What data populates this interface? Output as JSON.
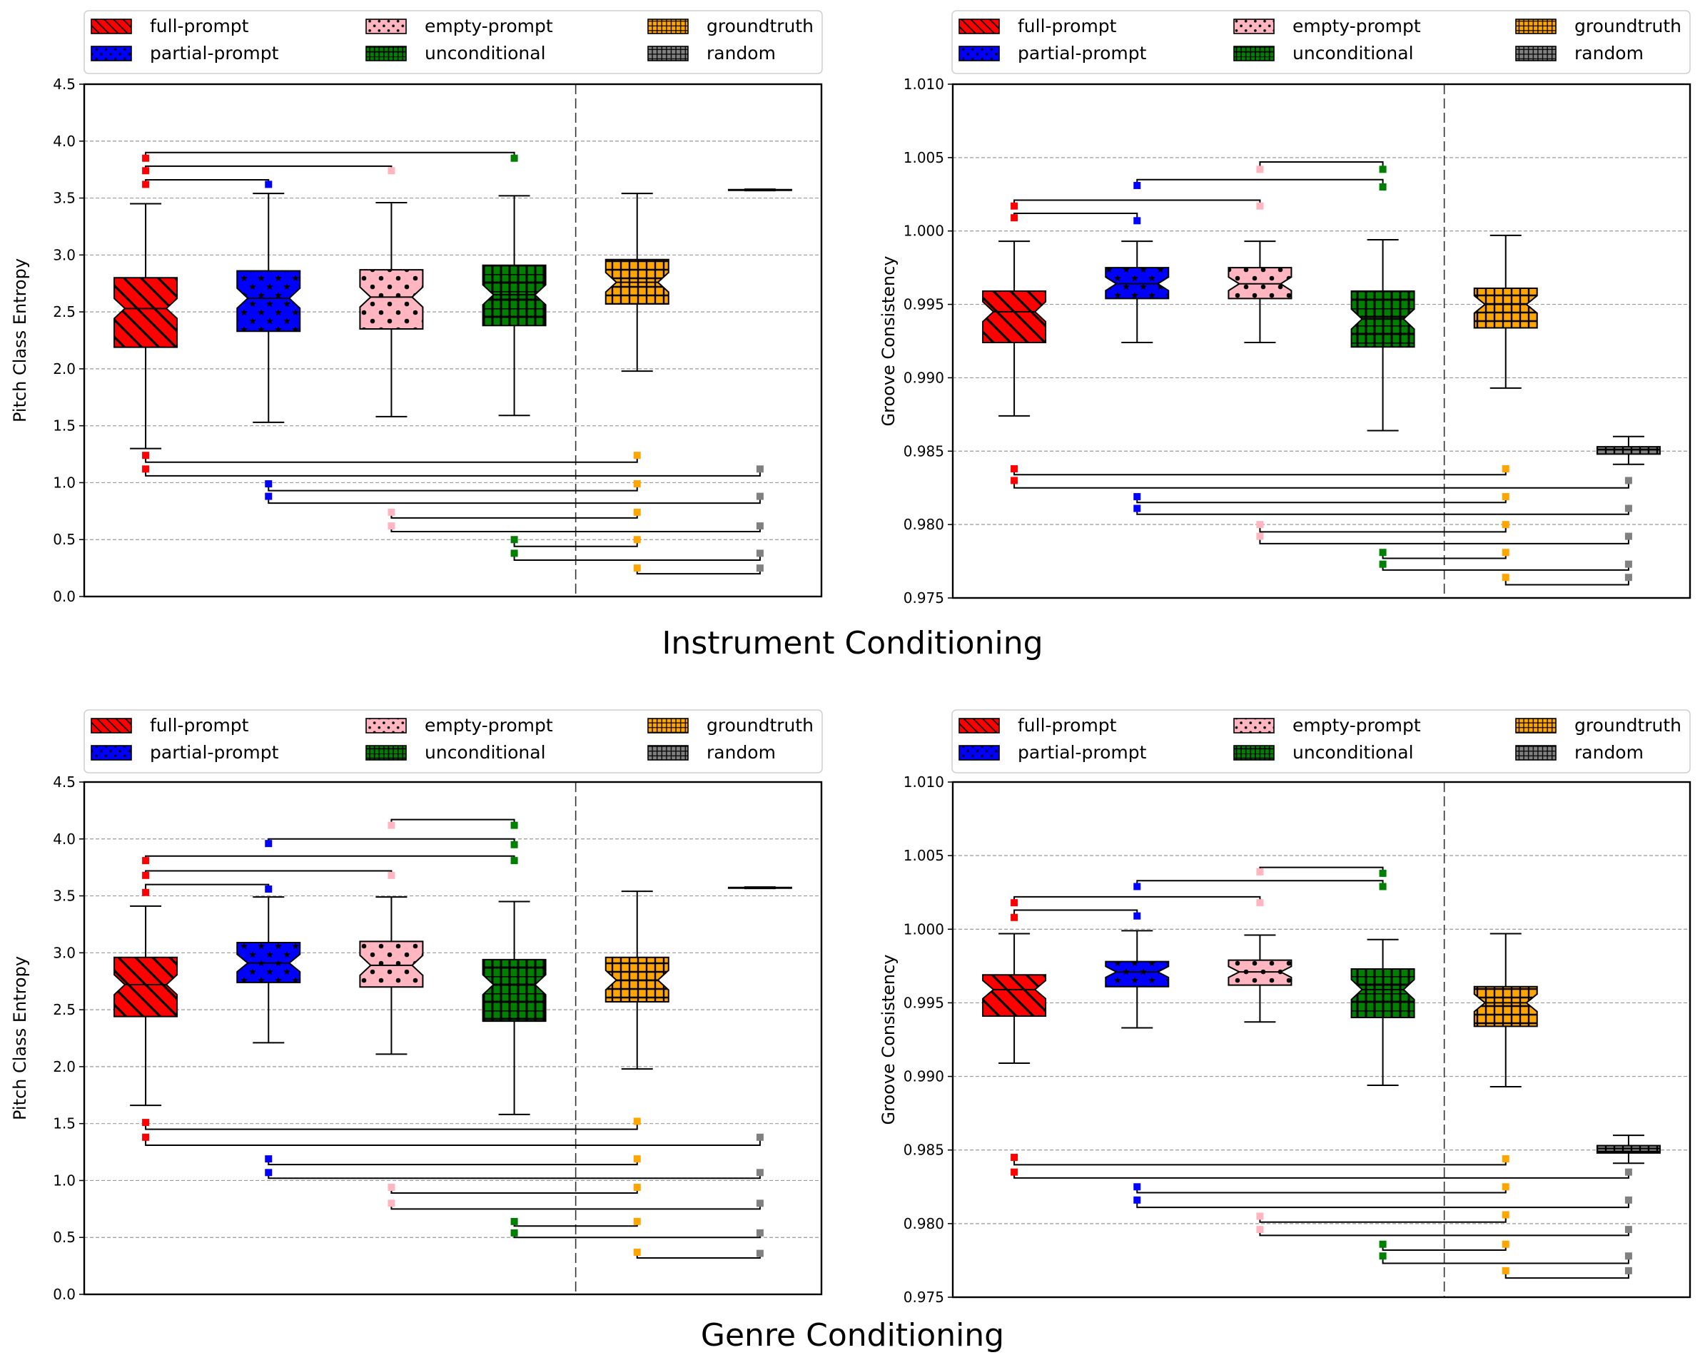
{
  "sections": [
    {
      "title": "Instrument Conditioning"
    },
    {
      "title": "Genre Conditioning"
    }
  ],
  "legend": [
    {
      "label": "full-prompt",
      "color": "#ff0000",
      "pattern": "diagonal"
    },
    {
      "label": "partial-prompt",
      "color": "#0000ff",
      "pattern": "stars"
    },
    {
      "label": "empty-prompt",
      "color": "#ffb6c1",
      "pattern": "dots"
    },
    {
      "label": "unconditional",
      "color": "#008000",
      "pattern": "squares"
    },
    {
      "label": "groundtruth",
      "color": "#ffa500",
      "pattern": "grid"
    },
    {
      "label": "random",
      "color": "#808080",
      "pattern": "grid"
    }
  ],
  "chart_data": [
    {
      "type": "box",
      "section": "Instrument Conditioning",
      "ylabel": "Pitch Class Entropy",
      "ylim": [
        0,
        4.5
      ],
      "yticks": [
        "0.0",
        "0.5",
        "1.0",
        "1.5",
        "2.0",
        "2.5",
        "3.0",
        "3.5",
        "4.0",
        "4.5"
      ],
      "categories": [
        "full-prompt",
        "partial-prompt",
        "empty-prompt",
        "unconditional",
        "groundtruth",
        "random"
      ],
      "boxes": [
        {
          "min": 1.3,
          "q1": 2.19,
          "median": 2.53,
          "q3": 2.8,
          "max": 3.45
        },
        {
          "min": 1.53,
          "q1": 2.33,
          "median": 2.62,
          "q3": 2.86,
          "max": 3.54
        },
        {
          "min": 1.58,
          "q1": 2.35,
          "median": 2.63,
          "q3": 2.87,
          "max": 3.46
        },
        {
          "min": 1.59,
          "q1": 2.38,
          "median": 2.65,
          "q3": 2.91,
          "max": 3.52
        },
        {
          "min": 1.98,
          "q1": 2.57,
          "median": 2.76,
          "q3": 2.96,
          "max": 3.54
        },
        {
          "min": 3.565,
          "q1": 3.568,
          "median": 3.571,
          "q3": 3.574,
          "max": 3.578
        }
      ],
      "brackets_above": [
        {
          "from": 0,
          "to": 3,
          "y": 3.9,
          "marks": [
            3.85,
            3.85
          ]
        },
        {
          "from": 0,
          "to": 2,
          "y": 3.78,
          "marks": [
            3.74,
            3.74
          ]
        },
        {
          "from": 0,
          "to": 1,
          "y": 3.66,
          "marks": [
            3.62,
            3.62
          ]
        }
      ],
      "brackets_below": [
        {
          "from": 0,
          "to": 4,
          "y": 1.18,
          "marks": [
            1.24,
            1.24
          ]
        },
        {
          "from": 0,
          "to": 5,
          "y": 1.06,
          "marks": [
            1.12,
            1.12
          ]
        },
        {
          "from": 1,
          "to": 4,
          "y": 0.93,
          "marks": [
            0.99,
            0.99
          ]
        },
        {
          "from": 1,
          "to": 5,
          "y": 0.82,
          "marks": [
            0.88,
            0.88
          ]
        },
        {
          "from": 2,
          "to": 4,
          "y": 0.69,
          "marks": [
            0.74,
            0.74
          ]
        },
        {
          "from": 2,
          "to": 5,
          "y": 0.57,
          "marks": [
            0.62,
            0.62
          ]
        },
        {
          "from": 3,
          "to": 4,
          "y": 0.44,
          "marks": [
            0.5,
            0.5
          ]
        },
        {
          "from": 3,
          "to": 5,
          "y": 0.32,
          "marks": [
            0.38,
            0.38
          ]
        },
        {
          "from": 4,
          "to": 5,
          "y": 0.2,
          "marks": [
            0.25,
            0.25
          ]
        }
      ],
      "divider_after": 3
    },
    {
      "type": "box",
      "section": "Instrument Conditioning",
      "ylabel": "Groove Consistency",
      "ylim": [
        0.975,
        1.01
      ],
      "yticks": [
        "0.975",
        "0.980",
        "0.985",
        "0.990",
        "0.995",
        "1.000",
        "1.005",
        "1.010"
      ],
      "categories": [
        "full-prompt",
        "partial-prompt",
        "empty-prompt",
        "unconditional",
        "groundtruth",
        "random"
      ],
      "boxes": [
        {
          "min": 0.9874,
          "q1": 0.9924,
          "median": 0.9945,
          "q3": 0.9959,
          "max": 0.9993
        },
        {
          "min": 0.9924,
          "q1": 0.9954,
          "median": 0.9964,
          "q3": 0.9975,
          "max": 0.9993
        },
        {
          "min": 0.9924,
          "q1": 0.9954,
          "median": 0.9964,
          "q3": 0.9975,
          "max": 0.9993
        },
        {
          "min": 0.9864,
          "q1": 0.9921,
          "median": 0.994,
          "q3": 0.9959,
          "max": 0.9994
        },
        {
          "min": 0.9893,
          "q1": 0.9934,
          "median": 0.995,
          "q3": 0.9961,
          "max": 0.9997
        },
        {
          "min": 0.9841,
          "q1": 0.9848,
          "median": 0.9851,
          "q3": 0.9853,
          "max": 0.986
        }
      ],
      "brackets_above": [
        {
          "from": 2,
          "to": 3,
          "y": 1.0047,
          "marks": [
            1.0042,
            1.0042
          ]
        },
        {
          "from": 1,
          "to": 3,
          "y": 1.0035,
          "marks": [
            1.0031,
            1.003
          ]
        },
        {
          "from": 0,
          "to": 2,
          "y": 1.0021,
          "marks": [
            1.0017,
            1.0017
          ]
        },
        {
          "from": 0,
          "to": 1,
          "y": 1.0012,
          "marks": [
            1.0009,
            1.0007
          ]
        }
      ],
      "brackets_below": [
        {
          "from": 0,
          "to": 4,
          "y": 0.9834,
          "marks": [
            0.9838,
            0.9838
          ]
        },
        {
          "from": 0,
          "to": 5,
          "y": 0.9825,
          "marks": [
            0.983,
            0.983
          ]
        },
        {
          "from": 1,
          "to": 4,
          "y": 0.9815,
          "marks": [
            0.9819,
            0.9819
          ]
        },
        {
          "from": 1,
          "to": 5,
          "y": 0.9807,
          "marks": [
            0.9811,
            0.9811
          ]
        },
        {
          "from": 2,
          "to": 4,
          "y": 0.9795,
          "marks": [
            0.98,
            0.98
          ]
        },
        {
          "from": 2,
          "to": 5,
          "y": 0.9787,
          "marks": [
            0.9792,
            0.9792
          ]
        },
        {
          "from": 3,
          "to": 4,
          "y": 0.9777,
          "marks": [
            0.9781,
            0.9781
          ]
        },
        {
          "from": 3,
          "to": 5,
          "y": 0.9769,
          "marks": [
            0.9773,
            0.9773
          ]
        },
        {
          "from": 4,
          "to": 5,
          "y": 0.9759,
          "marks": [
            0.9764,
            0.9764
          ]
        }
      ],
      "divider_after": 3
    },
    {
      "type": "box",
      "section": "Genre Conditioning",
      "ylabel": "Pitch Class Entropy",
      "ylim": [
        0,
        4.5
      ],
      "yticks": [
        "0.0",
        "0.5",
        "1.0",
        "1.5",
        "2.0",
        "2.5",
        "3.0",
        "3.5",
        "4.0",
        "4.5"
      ],
      "categories": [
        "full-prompt",
        "partial-prompt",
        "empty-prompt",
        "unconditional",
        "groundtruth",
        "random"
      ],
      "boxes": [
        {
          "min": 1.66,
          "q1": 2.44,
          "median": 2.72,
          "q3": 2.96,
          "max": 3.41
        },
        {
          "min": 2.21,
          "q1": 2.74,
          "median": 2.91,
          "q3": 3.09,
          "max": 3.49
        },
        {
          "min": 2.11,
          "q1": 2.7,
          "median": 2.89,
          "q3": 3.1,
          "max": 3.49
        },
        {
          "min": 1.58,
          "q1": 2.4,
          "median": 2.72,
          "q3": 2.94,
          "max": 3.45
        },
        {
          "min": 1.98,
          "q1": 2.57,
          "median": 2.76,
          "q3": 2.96,
          "max": 3.54
        },
        {
          "min": 3.565,
          "q1": 3.568,
          "median": 3.571,
          "q3": 3.574,
          "max": 3.578
        }
      ],
      "brackets_above": [
        {
          "from": 2,
          "to": 3,
          "y": 4.17,
          "marks": [
            4.12,
            4.12
          ]
        },
        {
          "from": 1,
          "to": 3,
          "y": 4.0,
          "marks": [
            3.96,
            3.95
          ]
        },
        {
          "from": 0,
          "to": 3,
          "y": 3.85,
          "marks": [
            3.81,
            3.81
          ]
        },
        {
          "from": 0,
          "to": 2,
          "y": 3.72,
          "marks": [
            3.68,
            3.68
          ]
        },
        {
          "from": 0,
          "to": 1,
          "y": 3.6,
          "marks": [
            3.53,
            3.56
          ]
        }
      ],
      "brackets_below": [
        {
          "from": 0,
          "to": 4,
          "y": 1.45,
          "marks": [
            1.51,
            1.52
          ]
        },
        {
          "from": 0,
          "to": 5,
          "y": 1.31,
          "marks": [
            1.38,
            1.38
          ]
        },
        {
          "from": 1,
          "to": 4,
          "y": 1.14,
          "marks": [
            1.19,
            1.19
          ]
        },
        {
          "from": 1,
          "to": 5,
          "y": 1.02,
          "marks": [
            1.07,
            1.07
          ]
        },
        {
          "from": 2,
          "to": 4,
          "y": 0.89,
          "marks": [
            0.94,
            0.94
          ]
        },
        {
          "from": 2,
          "to": 5,
          "y": 0.75,
          "marks": [
            0.8,
            0.8
          ]
        },
        {
          "from": 3,
          "to": 4,
          "y": 0.6,
          "marks": [
            0.64,
            0.64
          ]
        },
        {
          "from": 3,
          "to": 5,
          "y": 0.5,
          "marks": [
            0.54,
            0.54
          ]
        },
        {
          "from": 4,
          "to": 5,
          "y": 0.32,
          "marks": [
            0.37,
            0.36
          ]
        }
      ],
      "divider_after": 3
    },
    {
      "type": "box",
      "section": "Genre Conditioning",
      "ylabel": "Groove Consistency",
      "ylim": [
        0.975,
        1.01
      ],
      "yticks": [
        "0.975",
        "0.980",
        "0.985",
        "0.990",
        "0.995",
        "1.000",
        "1.005",
        "1.010"
      ],
      "categories": [
        "full-prompt",
        "partial-prompt",
        "empty-prompt",
        "unconditional",
        "groundtruth",
        "random"
      ],
      "boxes": [
        {
          "min": 0.9909,
          "q1": 0.9941,
          "median": 0.9959,
          "q3": 0.9969,
          "max": 0.9997
        },
        {
          "min": 0.9933,
          "q1": 0.9961,
          "median": 0.9971,
          "q3": 0.9978,
          "max": 0.9999
        },
        {
          "min": 0.9937,
          "q1": 0.9962,
          "median": 0.9971,
          "q3": 0.9979,
          "max": 0.9996
        },
        {
          "min": 0.9894,
          "q1": 0.994,
          "median": 0.9959,
          "q3": 0.9973,
          "max": 0.9993
        },
        {
          "min": 0.9893,
          "q1": 0.9934,
          "median": 0.995,
          "q3": 0.9961,
          "max": 0.9997
        },
        {
          "min": 0.9841,
          "q1": 0.9848,
          "median": 0.9851,
          "q3": 0.9853,
          "max": 0.986
        }
      ],
      "brackets_above": [
        {
          "from": 2,
          "to": 3,
          "y": 1.0042,
          "marks": [
            1.0039,
            1.0038
          ]
        },
        {
          "from": 1,
          "to": 3,
          "y": 1.0033,
          "marks": [
            1.0029,
            1.0029
          ]
        },
        {
          "from": 0,
          "to": 2,
          "y": 1.0022,
          "marks": [
            1.0018,
            1.0018
          ]
        },
        {
          "from": 0,
          "to": 1,
          "y": 1.0013,
          "marks": [
            1.0008,
            1.0009
          ]
        }
      ],
      "brackets_below": [
        {
          "from": 0,
          "to": 4,
          "y": 0.984,
          "marks": [
            0.9845,
            0.9844
          ]
        },
        {
          "from": 0,
          "to": 5,
          "y": 0.9831,
          "marks": [
            0.9835,
            0.9835
          ]
        },
        {
          "from": 1,
          "to": 4,
          "y": 0.9821,
          "marks": [
            0.9825,
            0.9825
          ]
        },
        {
          "from": 1,
          "to": 5,
          "y": 0.9811,
          "marks": [
            0.9816,
            0.9816
          ]
        },
        {
          "from": 2,
          "to": 4,
          "y": 0.9801,
          "marks": [
            0.9805,
            0.9806
          ]
        },
        {
          "from": 2,
          "to": 5,
          "y": 0.9792,
          "marks": [
            0.9796,
            0.9796
          ]
        },
        {
          "from": 3,
          "to": 4,
          "y": 0.9782,
          "marks": [
            0.9786,
            0.9786
          ]
        },
        {
          "from": 3,
          "to": 5,
          "y": 0.9773,
          "marks": [
            0.9778,
            0.9778
          ]
        },
        {
          "from": 4,
          "to": 5,
          "y": 0.9763,
          "marks": [
            0.9768,
            0.9768
          ]
        }
      ],
      "divider_after": 3
    }
  ]
}
